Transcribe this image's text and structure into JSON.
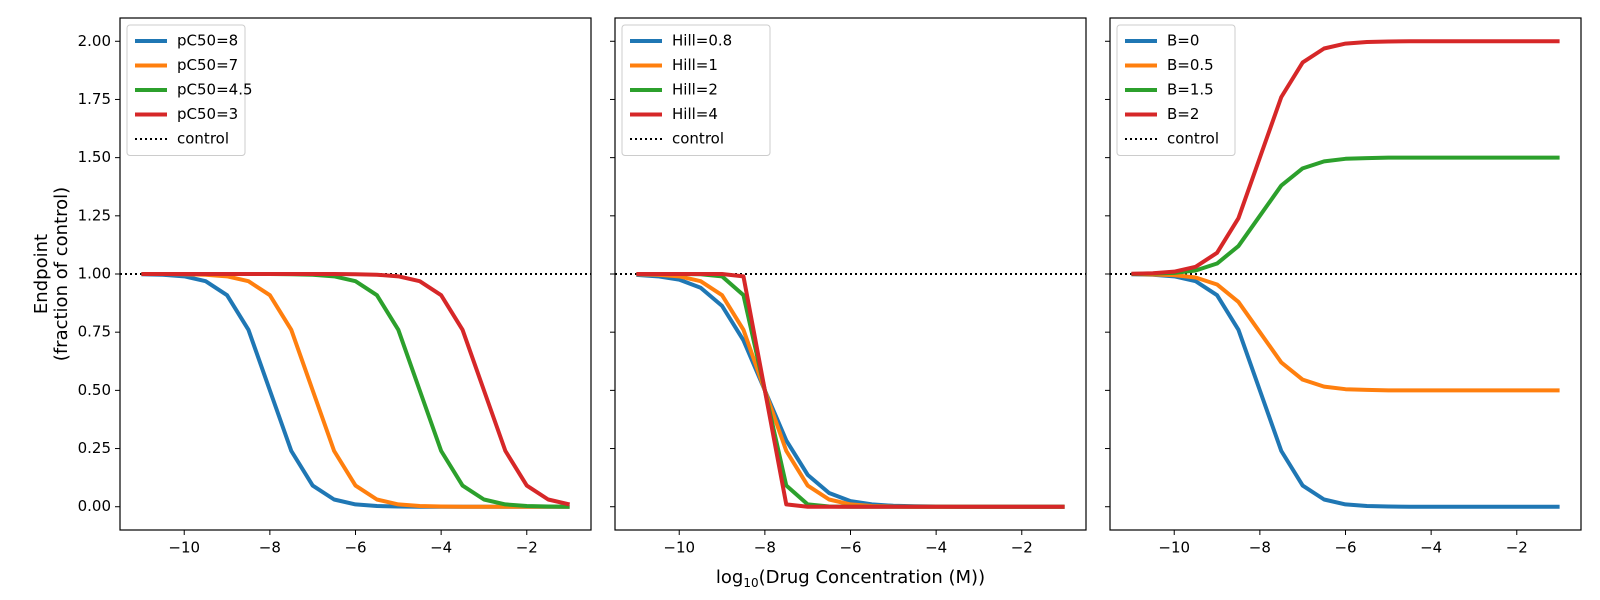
{
  "chart_data": [
    {
      "type": "line",
      "legend": "upper left",
      "show_ytick_labels": true,
      "ylabel": [
        "Endpoint",
        "(fraction of control)"
      ],
      "x": [
        -11,
        -10.5,
        -10,
        -9.5,
        -9,
        -8.5,
        -8,
        -7.5,
        -7,
        -6.5,
        -6,
        -5.5,
        -5,
        -4.5,
        -4,
        -3.5,
        -3,
        -2.5,
        -2,
        -1.5,
        -1
      ],
      "series": [
        {
          "name": "pC50=8",
          "color": "#1f77b4",
          "values": [
            0.999,
            0.997,
            0.99,
            0.969,
            0.909,
            0.76,
            0.5,
            0.24,
            0.091,
            0.031,
            0.01,
            0.003,
            0.001,
            0,
            0,
            0,
            0,
            0,
            0,
            0,
            0
          ]
        },
        {
          "name": "pC50=7",
          "color": "#ff7f0e",
          "values": [
            1,
            1,
            0.999,
            0.997,
            0.99,
            0.969,
            0.909,
            0.76,
            0.5,
            0.24,
            0.091,
            0.031,
            0.01,
            0.003,
            0.001,
            0,
            0,
            0,
            0,
            0,
            0
          ]
        },
        {
          "name": "pC50=4.5",
          "color": "#2ca02c",
          "values": [
            1,
            1,
            1,
            1,
            1,
            1,
            1,
            0.999,
            0.997,
            0.99,
            0.969,
            0.909,
            0.76,
            0.5,
            0.24,
            0.091,
            0.031,
            0.01,
            0.003,
            0.001,
            0
          ]
        },
        {
          "name": "pC50=3",
          "color": "#d62728",
          "values": [
            1,
            1,
            1,
            1,
            1,
            1,
            1,
            1,
            1,
            1,
            0.999,
            0.997,
            0.99,
            0.969,
            0.909,
            0.76,
            0.5,
            0.24,
            0.091,
            0.031,
            0.01
          ]
        }
      ],
      "hline": {
        "name": "control",
        "value": 1,
        "color": "#000000"
      },
      "xlim": [
        -11.5,
        -0.5
      ],
      "ylim": [
        -0.1,
        2.1
      ],
      "xticks": [
        {
          "value": -10,
          "label": "−10"
        },
        {
          "value": -8,
          "label": "−8"
        },
        {
          "value": -6,
          "label": "−6"
        },
        {
          "value": -4,
          "label": "−4"
        },
        {
          "value": -2,
          "label": "−2"
        }
      ],
      "yticks": [
        {
          "value": 0,
          "label": "0.00"
        },
        {
          "value": 0.25,
          "label": "0.25"
        },
        {
          "value": 0.5,
          "label": "0.50"
        },
        {
          "value": 0.75,
          "label": "0.75"
        },
        {
          "value": 1,
          "label": "1.00"
        },
        {
          "value": 1.25,
          "label": "1.25"
        },
        {
          "value": 1.5,
          "label": "1.50"
        },
        {
          "value": 1.75,
          "label": "1.75"
        },
        {
          "value": 2,
          "label": "2.00"
        }
      ]
    },
    {
      "type": "line",
      "legend": "upper left",
      "show_ytick_labels": false,
      "xlabel": {
        "base": "log",
        "subscript": "10",
        "rest": "(Drug Concentration (M))"
      },
      "x": [
        -11,
        -10.5,
        -10,
        -9.5,
        -9,
        -8.5,
        -8,
        -7.5,
        -7,
        -6.5,
        -6,
        -5.5,
        -5,
        -4.5,
        -4,
        -3.5,
        -3,
        -2.5,
        -2,
        -1.5,
        -1
      ],
      "series": [
        {
          "name": "Hill=0.8",
          "color": "#1f77b4",
          "values": [
            0.996,
            0.99,
            0.976,
            0.941,
            0.863,
            0.715,
            0.5,
            0.285,
            0.137,
            0.059,
            0.024,
            0.01,
            0.004,
            0.002,
            0.001,
            0,
            0,
            0,
            0,
            0,
            0
          ]
        },
        {
          "name": "Hill=1",
          "color": "#ff7f0e",
          "values": [
            0.999,
            0.997,
            0.99,
            0.969,
            0.909,
            0.76,
            0.5,
            0.24,
            0.091,
            0.031,
            0.01,
            0.003,
            0.001,
            0,
            0,
            0,
            0,
            0,
            0,
            0,
            0
          ]
        },
        {
          "name": "Hill=2",
          "color": "#2ca02c",
          "values": [
            1,
            1,
            1,
            0.999,
            0.99,
            0.909,
            0.5,
            0.091,
            0.01,
            0.001,
            0,
            0,
            0,
            0,
            0,
            0,
            0,
            0,
            0,
            0,
            0
          ]
        },
        {
          "name": "Hill=4",
          "color": "#d62728",
          "values": [
            1,
            1,
            1,
            1,
            1,
            0.99,
            0.5,
            0.01,
            0,
            0,
            0,
            0,
            0,
            0,
            0,
            0,
            0,
            0,
            0,
            0,
            0
          ]
        }
      ],
      "hline": {
        "name": "control",
        "value": 1,
        "color": "#000000"
      },
      "xlim": [
        -11.5,
        -0.5
      ],
      "ylim": [
        -0.1,
        2.1
      ],
      "xticks": [
        {
          "value": -10,
          "label": "−10"
        },
        {
          "value": -8,
          "label": "−8"
        },
        {
          "value": -6,
          "label": "−6"
        },
        {
          "value": -4,
          "label": "−4"
        },
        {
          "value": -2,
          "label": "−2"
        }
      ],
      "yticks": [
        0,
        0.25,
        0.5,
        0.75,
        1,
        1.25,
        1.5,
        1.75,
        2
      ]
    },
    {
      "type": "line",
      "legend": "upper left",
      "show_ytick_labels": false,
      "x": [
        -11,
        -10.5,
        -10,
        -9.5,
        -9,
        -8.5,
        -8,
        -7.5,
        -7,
        -6.5,
        -6,
        -5.5,
        -5,
        -4.5,
        -4,
        -3.5,
        -3,
        -2.5,
        -2,
        -1.5,
        -1
      ],
      "series": [
        {
          "name": "B=0",
          "color": "#1f77b4",
          "values": [
            0.999,
            0.997,
            0.99,
            0.969,
            0.909,
            0.76,
            0.5,
            0.24,
            0.091,
            0.031,
            0.01,
            0.003,
            0.001,
            0,
            0,
            0,
            0,
            0,
            0,
            0,
            0
          ]
        },
        {
          "name": "B=0.5",
          "color": "#ff7f0e",
          "values": [
            1,
            0.998,
            0.995,
            0.985,
            0.955,
            0.88,
            0.75,
            0.62,
            0.546,
            0.516,
            0.505,
            0.502,
            0.5,
            0.5,
            0.5,
            0.5,
            0.5,
            0.5,
            0.5,
            0.5,
            0.5
          ]
        },
        {
          "name": "B=1.5",
          "color": "#2ca02c",
          "values": [
            1,
            1.002,
            1.005,
            1.015,
            1.045,
            1.12,
            1.25,
            1.38,
            1.454,
            1.484,
            1.495,
            1.498,
            1.5,
            1.5,
            1.5,
            1.5,
            1.5,
            1.5,
            1.5,
            1.5,
            1.5
          ]
        },
        {
          "name": "B=2",
          "color": "#d62728",
          "values": [
            1.001,
            1.003,
            1.01,
            1.031,
            1.091,
            1.24,
            1.5,
            1.76,
            1.909,
            1.969,
            1.99,
            1.997,
            1.999,
            2,
            2,
            2,
            2,
            2,
            2,
            2,
            2
          ]
        }
      ],
      "hline": {
        "name": "control",
        "value": 1,
        "color": "#000000"
      },
      "xlim": [
        -11.5,
        -0.5
      ],
      "ylim": [
        -0.1,
        2.1
      ],
      "xticks": [
        {
          "value": -10,
          "label": "−10"
        },
        {
          "value": -8,
          "label": "−8"
        },
        {
          "value": -6,
          "label": "−6"
        },
        {
          "value": -4,
          "label": "−4"
        },
        {
          "value": -2,
          "label": "−2"
        }
      ],
      "yticks": [
        0,
        0.25,
        0.5,
        0.75,
        1,
        1.25,
        1.5,
        1.75,
        2
      ]
    }
  ]
}
